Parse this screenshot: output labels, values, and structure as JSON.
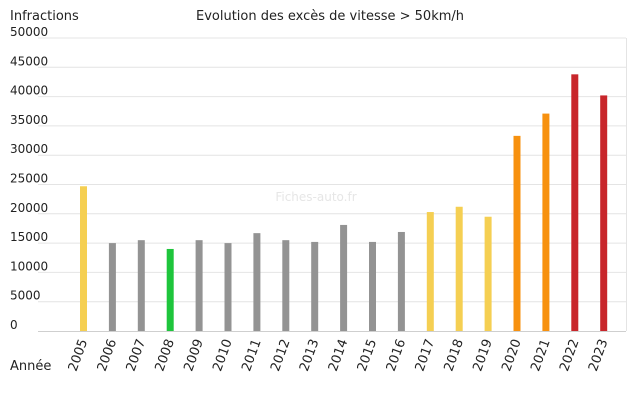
{
  "chart_data": {
    "type": "bar",
    "title": "Evolution des excès de vitesse > 50km/h",
    "ylabel": "Infractions",
    "xlabel": "Année",
    "watermark": "Fiches-auto.fr",
    "ylim": [
      0,
      50000
    ],
    "yticks": [
      0,
      5000,
      10000,
      15000,
      20000,
      25000,
      30000,
      35000,
      40000,
      45000,
      50000
    ],
    "ytick_labels": [
      "0",
      "5000",
      "10000",
      "15000",
      "20000",
      "25000",
      "30000",
      "35000",
      "40000",
      "45000",
      "50000"
    ],
    "grid": true,
    "categories": [
      "2005",
      "2006",
      "2007",
      "2008",
      "2009",
      "2010",
      "2011",
      "2012",
      "2013",
      "2014",
      "2015",
      "2016",
      "2017",
      "2018",
      "2019",
      "2020",
      "2021",
      "2022",
      "2023"
    ],
    "values": [
      24700,
      15000,
      15500,
      14000,
      15500,
      15000,
      16700,
      15500,
      15200,
      18100,
      15200,
      16900,
      20300,
      21200,
      19500,
      33300,
      37100,
      43800,
      40200
    ],
    "colors": [
      "#f5cf52",
      "#939393",
      "#939393",
      "#1ec53c",
      "#939393",
      "#939393",
      "#939393",
      "#939393",
      "#939393",
      "#939393",
      "#939393",
      "#939393",
      "#f5cf52",
      "#f5cf52",
      "#f5cf52",
      "#f7910f",
      "#f7910f",
      "#c8262b",
      "#c8262b"
    ]
  }
}
